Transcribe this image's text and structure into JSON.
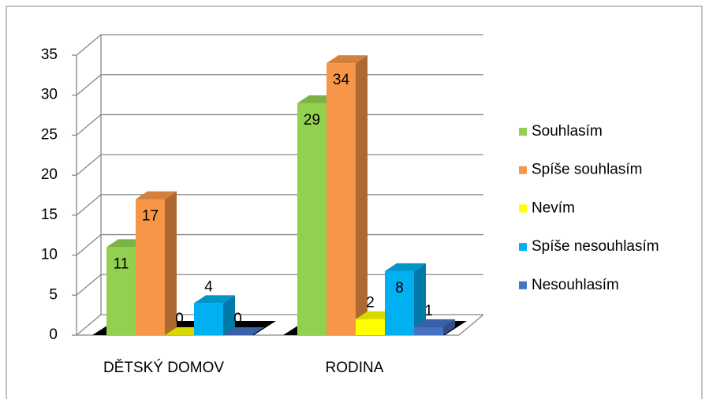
{
  "chart_data": {
    "type": "bar3d",
    "categories": [
      "DĚTSKÝ DOMOV",
      "RODINA"
    ],
    "series": [
      {
        "name": "Souhlasím",
        "color": "#92d050",
        "values": [
          11,
          29
        ]
      },
      {
        "name": "Spíše souhlasím",
        "color": "#f79646",
        "values": [
          17,
          34
        ]
      },
      {
        "name": "Nevím",
        "color": "#ffff00",
        "values": [
          0,
          2
        ]
      },
      {
        "name": "Spíše nesouhlasím",
        "color": "#00b0f0",
        "values": [
          4,
          8
        ]
      },
      {
        "name": "Nesouhlasím",
        "color": "#4472c4",
        "values": [
          0,
          1
        ]
      }
    ],
    "ylim": [
      0,
      35
    ],
    "yticks": [
      0,
      5,
      10,
      15,
      20,
      25,
      30,
      35
    ],
    "grid": true,
    "legend": "right"
  }
}
